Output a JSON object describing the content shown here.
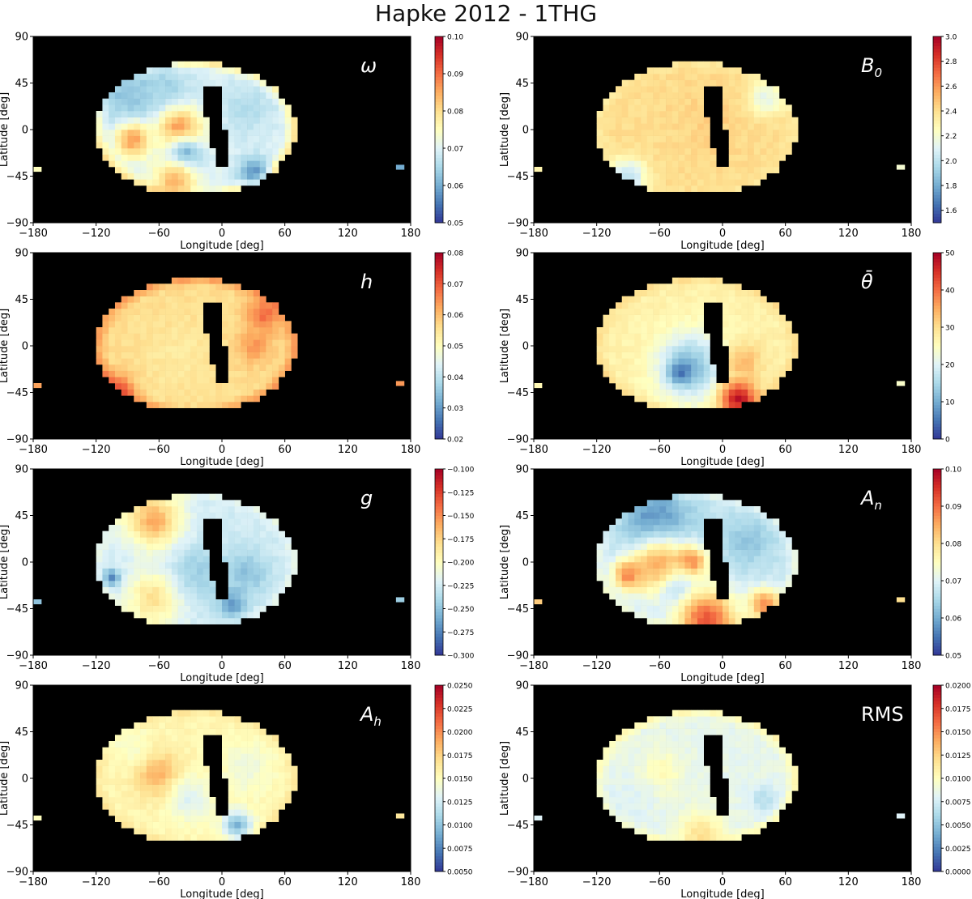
{
  "figure": {
    "title": "Hapke 2012 - 1THG"
  },
  "chart_data": [
    {
      "type": "heatmap",
      "param": "omega",
      "label": "ω",
      "label_sub": "",
      "xlabel": "Longitude [deg]",
      "ylabel": "Latitude [deg]",
      "xlim": [
        -180,
        180
      ],
      "ylim": [
        -90,
        90
      ],
      "xticks": [
        "−180",
        "−120",
        "−60",
        "0",
        "60",
        "120",
        "180"
      ],
      "yticks": [
        "90",
        "45",
        "0",
        "−45",
        "−90"
      ],
      "colorbar": {
        "min": 0.05,
        "max": 0.1,
        "ticks": [
          "0.05",
          "0.06",
          "0.07",
          "0.08",
          "0.09",
          "0.10"
        ]
      },
      "background_value": 0.07,
      "edge_value": 0.08,
      "features": [
        {
          "lon": -90,
          "lat": 35,
          "sigma": 25,
          "value": 0.062
        },
        {
          "lon": -55,
          "lat": 35,
          "sigma": 20,
          "value": 0.064
        },
        {
          "lon": 25,
          "lat": 20,
          "sigma": 20,
          "value": 0.066
        },
        {
          "lon": -40,
          "lat": 0,
          "sigma": 15,
          "value": 0.088
        },
        {
          "lon": -85,
          "lat": -10,
          "sigma": 12,
          "value": 0.086
        },
        {
          "lon": -35,
          "lat": -25,
          "sigma": 12,
          "value": 0.058
        },
        {
          "lon": -45,
          "lat": -50,
          "sigma": 15,
          "value": 0.084
        },
        {
          "lon": 30,
          "lat": -40,
          "sigma": 10,
          "value": 0.058
        }
      ],
      "islands": [
        {
          "lon": 170,
          "lat": -36,
          "value": 0.06
        },
        {
          "lon": -176,
          "lat": -38,
          "value": 0.075
        }
      ]
    },
    {
      "type": "heatmap",
      "param": "B0",
      "label": "B",
      "label_sub": "0",
      "xlabel": "Longitude [deg]",
      "ylabel": "Latitude [deg]",
      "xlim": [
        -180,
        180
      ],
      "ylim": [
        -90,
        90
      ],
      "xticks": [
        "−180",
        "−120",
        "−60",
        "0",
        "60",
        "120",
        "180"
      ],
      "yticks": [
        "90",
        "45",
        "0",
        "−45",
        "−90"
      ],
      "colorbar": {
        "min": 1.5,
        "max": 3.0,
        "ticks": [
          "1.6",
          "1.8",
          "2.0",
          "2.2",
          "2.4",
          "2.6",
          "2.8",
          "3.0"
        ]
      },
      "background_value": 2.4,
      "edge_value": 2.35,
      "features": [
        {
          "lon": -90,
          "lat": -45,
          "sigma": 12,
          "value": 2.0
        },
        {
          "lon": 40,
          "lat": 30,
          "sigma": 12,
          "value": 2.1
        },
        {
          "lon": -10,
          "lat": 10,
          "sigma": 25,
          "value": 2.45
        }
      ],
      "islands": [
        {
          "lon": 170,
          "lat": -36,
          "value": 2.2
        },
        {
          "lon": -176,
          "lat": -38,
          "value": 2.3
        }
      ]
    },
    {
      "type": "heatmap",
      "param": "h",
      "label": "h",
      "label_sub": "",
      "xlabel": "Longitude [deg]",
      "ylabel": "Latitude [deg]",
      "xlim": [
        -180,
        180
      ],
      "ylim": [
        -90,
        90
      ],
      "xticks": [
        "−180",
        "−120",
        "−60",
        "0",
        "60",
        "120",
        "180"
      ],
      "yticks": [
        "90",
        "45",
        "0",
        "−45",
        "−90"
      ],
      "colorbar": {
        "min": 0.02,
        "max": 0.08,
        "ticks": [
          "0.02",
          "0.03",
          "0.04",
          "0.05",
          "0.06",
          "0.07",
          "0.08"
        ]
      },
      "background_value": 0.056,
      "edge_value": 0.064,
      "features": [
        {
          "lon": -100,
          "lat": -45,
          "sigma": 12,
          "value": 0.072
        },
        {
          "lon": 40,
          "lat": 30,
          "sigma": 12,
          "value": 0.068
        },
        {
          "lon": 30,
          "lat": 0,
          "sigma": 12,
          "value": 0.064
        },
        {
          "lon": -40,
          "lat": -10,
          "sigma": 25,
          "value": 0.054
        }
      ],
      "islands": [
        {
          "lon": 170,
          "lat": -36,
          "value": 0.064
        },
        {
          "lon": -176,
          "lat": -38,
          "value": 0.063
        }
      ]
    },
    {
      "type": "heatmap",
      "param": "theta_bar",
      "label": "θ̄",
      "label_sub": "",
      "xlabel": "Longitude [deg]",
      "ylabel": "Latitude [deg]",
      "xlim": [
        -180,
        180
      ],
      "ylim": [
        -90,
        90
      ],
      "xticks": [
        "−180",
        "−120",
        "−60",
        "0",
        "60",
        "120",
        "180"
      ],
      "yticks": [
        "90",
        "45",
        "0",
        "−45",
        "−90"
      ],
      "colorbar": {
        "min": 0,
        "max": 50,
        "ticks": [
          "0",
          "10",
          "20",
          "30",
          "40",
          "50"
        ]
      },
      "background_value": 27,
      "edge_value": 30,
      "features": [
        {
          "lon": -30,
          "lat": -20,
          "sigma": 22,
          "value": 12
        },
        {
          "lon": -40,
          "lat": -25,
          "sigma": 8,
          "value": 5
        },
        {
          "lon": 15,
          "lat": -50,
          "sigma": 12,
          "value": 48
        },
        {
          "lon": 20,
          "lat": -15,
          "sigma": 12,
          "value": 34
        }
      ],
      "islands": [
        {
          "lon": 170,
          "lat": -36,
          "value": 24
        },
        {
          "lon": -176,
          "lat": -38,
          "value": 26
        }
      ]
    },
    {
      "type": "heatmap",
      "param": "g",
      "label": "g",
      "label_sub": "",
      "xlabel": "Longitude [deg]",
      "ylabel": "Latitude [deg]",
      "xlim": [
        -180,
        180
      ],
      "ylim": [
        -90,
        90
      ],
      "xticks": [
        "−180",
        "−120",
        "−60",
        "0",
        "60",
        "120",
        "180"
      ],
      "yticks": [
        "90",
        "45",
        "0",
        "−45",
        "−90"
      ],
      "colorbar": {
        "min": -0.3,
        "max": -0.1,
        "ticks": [
          "−0.300",
          "−0.275",
          "−0.250",
          "−0.225",
          "−0.200",
          "−0.175",
          "−0.150",
          "−0.125",
          "−0.100"
        ]
      },
      "background_value": -0.225,
      "edge_value": -0.215,
      "features": [
        {
          "lon": -65,
          "lat": 40,
          "sigma": 18,
          "value": -0.16
        },
        {
          "lon": -65,
          "lat": -35,
          "sigma": 18,
          "value": -0.18
        },
        {
          "lon": -20,
          "lat": -10,
          "sigma": 18,
          "value": -0.245
        },
        {
          "lon": 25,
          "lat": -10,
          "sigma": 15,
          "value": -0.25
        },
        {
          "lon": 10,
          "lat": -40,
          "sigma": 10,
          "value": -0.265
        },
        {
          "lon": -105,
          "lat": -15,
          "sigma": 6,
          "value": -0.27
        }
      ],
      "islands": [
        {
          "lon": 170,
          "lat": -36,
          "value": -0.245
        },
        {
          "lon": -176,
          "lat": -38,
          "value": -0.25
        }
      ]
    },
    {
      "type": "heatmap",
      "param": "An",
      "label": "A",
      "label_sub": "n",
      "xlabel": "Longitude [deg]",
      "ylabel": "Latitude [deg]",
      "xlim": [
        -180,
        180
      ],
      "ylim": [
        -90,
        90
      ],
      "xticks": [
        "−180",
        "−120",
        "−60",
        "0",
        "60",
        "120",
        "180"
      ],
      "yticks": [
        "90",
        "45",
        "0",
        "−45",
        "−90"
      ],
      "colorbar": {
        "min": 0.05,
        "max": 0.1,
        "ticks": [
          "0.05",
          "0.06",
          "0.07",
          "0.08",
          "0.09",
          "0.10"
        ]
      },
      "background_value": 0.068,
      "edge_value": 0.072,
      "features": [
        {
          "lon": -65,
          "lat": 40,
          "sigma": 25,
          "value": 0.057
        },
        {
          "lon": 25,
          "lat": 20,
          "sigma": 18,
          "value": 0.063
        },
        {
          "lon": -60,
          "lat": -5,
          "sigma": 20,
          "value": 0.086
        },
        {
          "lon": -30,
          "lat": 0,
          "sigma": 10,
          "value": 0.09
        },
        {
          "lon": -90,
          "lat": -12,
          "sigma": 10,
          "value": 0.088
        },
        {
          "lon": -40,
          "lat": -30,
          "sigma": 14,
          "value": 0.064
        },
        {
          "lon": -15,
          "lat": -55,
          "sigma": 20,
          "value": 0.092
        },
        {
          "lon": 40,
          "lat": -40,
          "sigma": 10,
          "value": 0.088
        }
      ],
      "islands": [
        {
          "lon": 170,
          "lat": -36,
          "value": 0.08
        },
        {
          "lon": -176,
          "lat": -38,
          "value": 0.082
        }
      ]
    },
    {
      "type": "heatmap",
      "param": "Ah",
      "label": "A",
      "label_sub": "h",
      "xlabel": "Longitude [deg]",
      "ylabel": "Latitude [deg]",
      "xlim": [
        -180,
        180
      ],
      "ylim": [
        -90,
        90
      ],
      "xticks": [
        "−180",
        "−120",
        "−60",
        "0",
        "60",
        "120",
        "180"
      ],
      "yticks": [
        "90",
        "45",
        "0",
        "−45",
        "−90"
      ],
      "colorbar": {
        "min": 0.005,
        "max": 0.025,
        "ticks": [
          "0.0050",
          "0.0075",
          "0.0100",
          "0.0125",
          "0.0150",
          "0.0175",
          "0.0200",
          "0.0225",
          "0.0250"
        ]
      },
      "background_value": 0.0155,
      "edge_value": 0.0165,
      "features": [
        {
          "lon": -60,
          "lat": 3,
          "sigma": 15,
          "value": 0.019
        },
        {
          "lon": -30,
          "lat": -20,
          "sigma": 15,
          "value": 0.013
        },
        {
          "lon": 15,
          "lat": -45,
          "sigma": 10,
          "value": 0.0095
        },
        {
          "lon": 25,
          "lat": 10,
          "sigma": 18,
          "value": 0.014
        },
        {
          "lon": -90,
          "lat": 35,
          "sigma": 15,
          "value": 0.0145
        }
      ],
      "islands": [
        {
          "lon": 170,
          "lat": -36,
          "value": 0.0165
        },
        {
          "lon": -176,
          "lat": -38,
          "value": 0.015
        }
      ]
    },
    {
      "type": "heatmap",
      "param": "RMS",
      "label": "RMS",
      "label_sub": "",
      "xlabel": "Longitude [deg]",
      "ylabel": "Latitude [deg]",
      "xlim": [
        -180,
        180
      ],
      "ylim": [
        -90,
        90
      ],
      "xticks": [
        "−180",
        "−120",
        "−60",
        "0",
        "60",
        "120",
        "180"
      ],
      "yticks": [
        "90",
        "45",
        "0",
        "−45",
        "−90"
      ],
      "colorbar": {
        "min": 0.0,
        "max": 0.02,
        "ticks": [
          "0.0000",
          "0.0025",
          "0.0050",
          "0.0075",
          "0.0100",
          "0.0125",
          "0.0150",
          "0.0175",
          "0.0200"
        ]
      },
      "background_value": 0.0085,
      "edge_value": 0.0105,
      "features": [
        {
          "lon": -60,
          "lat": 5,
          "sigma": 15,
          "value": 0.0105
        },
        {
          "lon": -20,
          "lat": -55,
          "sigma": 15,
          "value": 0.012
        },
        {
          "lon": 40,
          "lat": -20,
          "sigma": 10,
          "value": 0.0065
        },
        {
          "lon": -90,
          "lat": -20,
          "sigma": 20,
          "value": 0.008
        }
      ],
      "islands": [
        {
          "lon": 170,
          "lat": -36,
          "value": 0.008
        },
        {
          "lon": -176,
          "lat": -38,
          "value": 0.008
        }
      ]
    }
  ]
}
